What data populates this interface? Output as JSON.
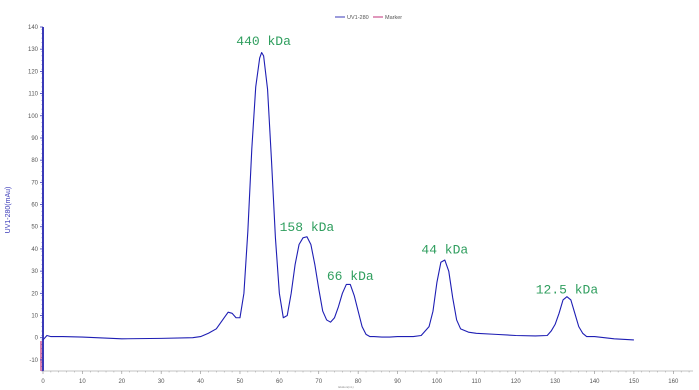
{
  "chart_data": {
    "type": "line",
    "ylabel": "UV1-280(mAu)",
    "xlabel": "Elution(mL)",
    "xlim": [
      0,
      165
    ],
    "ylim": [
      -15,
      140
    ],
    "x_ticks": [
      0,
      10,
      20,
      30,
      40,
      50,
      60,
      70,
      80,
      90,
      100,
      110,
      120,
      130,
      140,
      150,
      160
    ],
    "y_ticks": [
      -10,
      0,
      10,
      20,
      30,
      40,
      50,
      60,
      70,
      80,
      90,
      100,
      110,
      120,
      130,
      140
    ],
    "grid": false,
    "legend": {
      "position": "top-center",
      "entries": [
        {
          "name": "UV1-280",
          "color": "#3a3ab8"
        },
        {
          "name": "Marker",
          "color": "#c0307a"
        }
      ]
    },
    "series": [
      {
        "name": "UV1-280",
        "color": "#1e1eb4",
        "x": [
          0,
          1,
          2,
          5,
          10,
          20,
          30,
          38,
          40,
          42,
          44,
          46,
          47,
          48,
          49,
          50,
          51,
          52,
          53,
          54,
          55,
          55.5,
          56,
          57,
          58,
          59,
          60,
          61,
          62,
          63,
          64,
          65,
          66,
          67,
          68,
          69,
          70,
          71,
          72,
          73,
          74,
          75,
          76,
          77,
          78,
          79,
          80,
          81,
          82,
          83,
          84,
          86,
          88,
          90,
          92,
          94,
          96,
          98,
          99,
          100,
          101,
          102,
          103,
          104,
          105,
          106,
          108,
          110,
          115,
          120,
          125,
          128,
          129,
          130,
          131,
          132,
          133,
          134,
          135,
          136,
          137,
          138,
          140,
          145,
          150
        ],
        "y": [
          -1,
          1,
          0.5,
          0.5,
          0.3,
          -0.5,
          -0.3,
          0,
          0.5,
          2,
          4,
          9,
          11.5,
          11,
          9,
          9,
          20,
          48,
          85,
          113,
          126,
          128.5,
          127,
          112,
          80,
          45,
          20,
          9,
          10,
          20,
          33,
          42,
          45,
          45.5,
          42,
          33,
          22,
          12,
          8,
          7,
          9,
          14,
          20,
          24,
          24,
          19,
          12,
          5,
          1.5,
          0.5,
          0.5,
          0.3,
          0.3,
          0.5,
          0.5,
          0.5,
          1,
          5,
          12,
          25,
          34,
          35,
          30,
          18,
          8,
          4,
          2.5,
          2,
          1.5,
          1,
          0.8,
          1,
          3,
          6,
          11,
          17,
          18.5,
          17,
          11,
          5,
          2,
          0.5,
          0.5,
          -0.5,
          -1
        ]
      },
      {
        "name": "Marker",
        "color": "#c0307a",
        "x": [],
        "y": []
      }
    ],
    "annotations": [
      {
        "text": "440 kDa",
        "x": 56,
        "y": 132
      },
      {
        "text": "158 kDa",
        "x": 67,
        "y": 48
      },
      {
        "text": "66 kDa",
        "x": 78,
        "y": 26
      },
      {
        "text": "44 kDa",
        "x": 102,
        "y": 38
      },
      {
        "text": "12.5 kDa",
        "x": 133,
        "y": 20
      }
    ]
  }
}
